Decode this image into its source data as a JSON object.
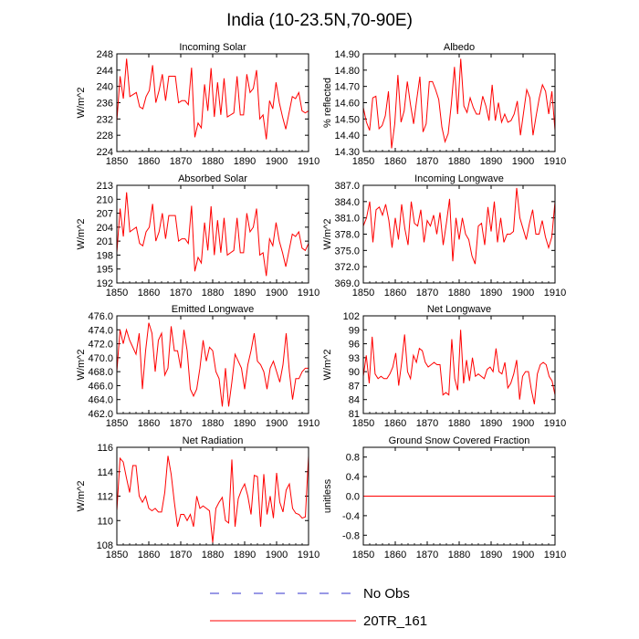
{
  "figure_title": "India (10-23.5N,70-90E)",
  "colors": {
    "model": "#ff0000",
    "obs": "#3333cc",
    "frame": "#000000"
  },
  "legend": [
    {
      "label": "No Obs",
      "style": "dashed",
      "color": "#3333cc"
    },
    {
      "label": "20TR_161",
      "style": "solid",
      "color": "#ff0000"
    }
  ],
  "chart_data": [
    {
      "type": "line",
      "title": "Incoming Solar",
      "ylabel": "W/m^2",
      "xlim": [
        1850,
        1910
      ],
      "ylim": [
        224,
        248
      ],
      "xticks": [
        1850,
        1860,
        1870,
        1880,
        1890,
        1900,
        1910
      ],
      "xtick_labels": [
        "1850",
        "1860",
        "1870",
        "1880",
        "1890",
        "1900",
        "1910"
      ],
      "yticks": [
        224,
        228,
        232,
        236,
        240,
        244,
        248
      ],
      "ytick_labels": [
        "224",
        "228",
        "232",
        "236",
        "240",
        "244",
        "248"
      ],
      "series": [
        {
          "name": "20TR_161",
          "x0": 1850,
          "values": [
            231.5,
            242.5,
            237.0,
            246.8,
            237.5,
            238.0,
            238.5,
            235.0,
            234.5,
            237.5,
            239.0,
            245.2,
            236.0,
            239.0,
            243.0,
            236.5,
            242.5,
            242.5,
            242.5,
            236.0,
            236.5,
            236.5,
            235.5,
            244.6,
            227.5,
            231.0,
            229.8,
            240.5,
            234.0,
            244.5,
            232.5,
            241.0,
            233.0,
            242.0,
            232.5,
            233.0,
            233.5,
            242.5,
            233.0,
            233.0,
            243.0,
            238.5,
            239.5,
            244.0,
            232.0,
            233.0,
            227.0,
            236.5,
            234.5,
            241.0,
            236.0,
            232.5,
            229.5,
            233.5,
            237.5,
            237.0,
            238.5,
            234.0,
            233.5,
            234.0
          ]
        }
      ]
    },
    {
      "type": "line",
      "title": "Albedo",
      "ylabel": "% reflected",
      "xlim": [
        1850,
        1910
      ],
      "ylim": [
        14.3,
        14.9
      ],
      "xticks": [
        1850,
        1860,
        1870,
        1880,
        1890,
        1900,
        1910
      ],
      "xtick_labels": [
        "1850",
        "1860",
        "1870",
        "1880",
        "1890",
        "1900",
        "1910"
      ],
      "yticks": [
        14.3,
        14.4,
        14.5,
        14.6,
        14.7,
        14.8,
        14.9
      ],
      "ytick_labels": [
        "14.30",
        "14.40",
        "14.50",
        "14.60",
        "14.70",
        "14.80",
        "14.90"
      ],
      "series": [
        {
          "name": "20TR_161",
          "x0": 1850,
          "values": [
            14.57,
            14.48,
            14.43,
            14.63,
            14.64,
            14.44,
            14.46,
            14.52,
            14.67,
            14.32,
            14.47,
            14.77,
            14.48,
            14.55,
            14.73,
            14.59,
            14.47,
            14.62,
            14.76,
            14.42,
            14.47,
            14.73,
            14.73,
            14.68,
            14.62,
            14.45,
            14.36,
            14.41,
            14.59,
            14.82,
            14.53,
            14.87,
            14.58,
            14.54,
            14.63,
            14.57,
            14.53,
            14.53,
            14.64,
            14.58,
            14.49,
            14.71,
            14.49,
            14.6,
            14.48,
            14.53,
            14.48,
            14.49,
            14.53,
            14.61,
            14.4,
            14.54,
            14.68,
            14.63,
            14.4,
            14.52,
            14.63,
            14.71,
            14.67,
            14.53,
            14.67,
            14.43
          ]
        }
      ]
    },
    {
      "type": "line",
      "title": "Absorbed Solar",
      "ylabel": "W/m^2",
      "xlim": [
        1850,
        1910
      ],
      "ylim": [
        192,
        213
      ],
      "xticks": [
        1850,
        1860,
        1870,
        1880,
        1890,
        1900,
        1910
      ],
      "xtick_labels": [
        "1850",
        "1860",
        "1870",
        "1880",
        "1890",
        "1900",
        "1910"
      ],
      "yticks": [
        192,
        195,
        198,
        201,
        204,
        207,
        210,
        213
      ],
      "ytick_labels": [
        "192",
        "195",
        "198",
        "201",
        "204",
        "207",
        "210",
        "213"
      ],
      "series": [
        {
          "name": "20TR_161",
          "x0": 1850,
          "values": [
            198.5,
            208.0,
            202.0,
            211.5,
            203.0,
            203.5,
            204.0,
            200.5,
            200.0,
            203.0,
            204.0,
            209.0,
            201.0,
            203.0,
            207.0,
            201.5,
            206.5,
            206.5,
            206.5,
            201.0,
            201.5,
            201.5,
            200.5,
            208.6,
            194.5,
            197.5,
            196.3,
            205.0,
            199.0,
            208.5,
            198.0,
            205.5,
            198.5,
            206.0,
            198.0,
            198.5,
            199.0,
            206.0,
            198.5,
            198.5,
            207.0,
            203.0,
            204.0,
            208.0,
            198.0,
            198.5,
            193.5,
            201.5,
            200.0,
            205.0,
            201.0,
            198.5,
            195.5,
            199.0,
            202.5,
            202.0,
            203.0,
            199.5,
            199.0,
            200.5
          ]
        }
      ]
    },
    {
      "type": "line",
      "title": "Incoming Longwave",
      "ylabel": "W/m^2",
      "xlim": [
        1850,
        1910
      ],
      "ylim": [
        369,
        387
      ],
      "xticks": [
        1850,
        1860,
        1870,
        1880,
        1890,
        1900,
        1910
      ],
      "xtick_labels": [
        "1850",
        "1860",
        "1870",
        "1880",
        "1890",
        "1900",
        "1910"
      ],
      "yticks": [
        369,
        372,
        375,
        378,
        381,
        384,
        387
      ],
      "ytick_labels": [
        "369.0",
        "372.0",
        "375.0",
        "378.0",
        "381.0",
        "384.0",
        "387.0"
      ],
      "series": [
        {
          "name": "20TR_161",
          "x0": 1850,
          "values": [
            379.5,
            381.0,
            384.0,
            376.5,
            382.5,
            383.0,
            381.5,
            383.5,
            380.5,
            375.5,
            381.0,
            377.0,
            383.5,
            379.0,
            376.0,
            384.0,
            380.0,
            379.5,
            382.5,
            376.5,
            380.5,
            379.5,
            381.5,
            378.0,
            382.0,
            376.0,
            380.0,
            384.5,
            373.0,
            381.0,
            377.0,
            381.0,
            378.0,
            377.0,
            374.0,
            372.5,
            379.5,
            380.0,
            376.0,
            383.0,
            378.5,
            384.0,
            376.5,
            381.0,
            376.5,
            378.0,
            378.0,
            378.5,
            386.5,
            381.0,
            379.0,
            377.0,
            380.0,
            382.5,
            378.0,
            378.0,
            380.5,
            377.5,
            375.5,
            377.5,
            384.0
          ]
        }
      ]
    },
    {
      "type": "line",
      "title": "Emitted Longwave",
      "ylabel": "W/m^2",
      "xlim": [
        1850,
        1910
      ],
      "ylim": [
        462,
        476
      ],
      "xticks": [
        1850,
        1860,
        1870,
        1880,
        1890,
        1900,
        1910
      ],
      "xtick_labels": [
        "1850",
        "1860",
        "1870",
        "1880",
        "1890",
        "1900",
        "1910"
      ],
      "yticks": [
        462,
        464,
        466,
        468,
        470,
        472,
        474,
        476
      ],
      "ytick_labels": [
        "462.0",
        "464.0",
        "466.0",
        "468.0",
        "470.0",
        "472.0",
        "474.0",
        "476.0"
      ],
      "series": [
        {
          "name": "20TR_161",
          "x0": 1850,
          "values": [
            468.0,
            474.0,
            472.0,
            474.0,
            472.5,
            471.5,
            470.5,
            473.5,
            465.5,
            471.0,
            475.0,
            473.5,
            468.0,
            472.5,
            473.5,
            467.5,
            468.5,
            474.5,
            471.0,
            471.0,
            468.5,
            474.0,
            471.0,
            465.5,
            464.5,
            465.5,
            468.5,
            472.5,
            469.5,
            471.5,
            471.0,
            468.0,
            467.0,
            463.0,
            468.5,
            463.0,
            466.5,
            470.5,
            469.5,
            468.5,
            465.5,
            469.0,
            471.0,
            473.5,
            469.5,
            469.0,
            468.0,
            465.5,
            468.5,
            469.5,
            468.0,
            466.5,
            469.0,
            473.5,
            468.0,
            464.0,
            467.0,
            467.0,
            468.0,
            468.5,
            468.5
          ]
        }
      ]
    },
    {
      "type": "line",
      "title": "Net Longwave",
      "ylabel": "W/m^2",
      "xlim": [
        1850,
        1910
      ],
      "ylim": [
        81,
        102
      ],
      "xticks": [
        1850,
        1860,
        1870,
        1880,
        1890,
        1900,
        1910
      ],
      "xtick_labels": [
        "1850",
        "1860",
        "1870",
        "1880",
        "1890",
        "1900",
        "1910"
      ],
      "yticks": [
        81,
        84,
        87,
        90,
        93,
        96,
        99,
        102
      ],
      "ytick_labels": [
        "81",
        "84",
        "87",
        "90",
        "93",
        "96",
        "99",
        "102"
      ],
      "series": [
        {
          "name": "20TR_161",
          "x0": 1850,
          "values": [
            89.0,
            93.5,
            87.5,
            97.5,
            89.5,
            88.5,
            89.0,
            88.5,
            88.5,
            89.5,
            91.0,
            94.0,
            87.0,
            92.0,
            98.0,
            90.0,
            88.5,
            93.5,
            92.0,
            95.0,
            94.5,
            92.0,
            91.0,
            91.5,
            92.0,
            91.5,
            91.5,
            85.0,
            85.5,
            85.0,
            97.0,
            88.5,
            86.0,
            99.0,
            87.5,
            92.5,
            88.0,
            93.0,
            89.0,
            89.5,
            89.0,
            88.5,
            90.5,
            91.0,
            90.0,
            95.0,
            90.0,
            89.5,
            92.0,
            86.5,
            87.5,
            89.5,
            92.5,
            84.0,
            89.0,
            90.0,
            90.0,
            86.0,
            83.0,
            89.5,
            91.5,
            92.0,
            91.5,
            89.0,
            88.0,
            85.0
          ]
        }
      ]
    },
    {
      "type": "line",
      "title": "Net Radiation",
      "ylabel": "W/m^2",
      "xlim": [
        1850,
        1910
      ],
      "ylim": [
        108,
        116
      ],
      "xticks": [
        1850,
        1860,
        1870,
        1880,
        1890,
        1900,
        1910
      ],
      "xtick_labels": [
        "1850",
        "1860",
        "1870",
        "1880",
        "1890",
        "1900",
        "1910"
      ],
      "yticks": [
        108,
        110,
        112,
        114,
        116
      ],
      "ytick_labels": [
        "108",
        "110",
        "112",
        "114",
        "116"
      ],
      "series": [
        {
          "name": "20TR_161",
          "x0": 1850,
          "values": [
            110.8,
            115.1,
            114.8,
            113.5,
            112.3,
            114.5,
            114.5,
            112.0,
            111.5,
            112.0,
            111.0,
            110.8,
            111.0,
            110.7,
            110.7,
            112.3,
            115.3,
            113.8,
            111.5,
            109.5,
            110.5,
            110.5,
            110.0,
            110.5,
            109.5,
            112.0,
            111.0,
            111.2,
            111.0,
            110.8,
            108.2,
            111.0,
            111.5,
            111.9,
            110.0,
            109.8,
            115.0,
            109.5,
            111.8,
            112.5,
            113.0,
            112.0,
            110.5,
            113.7,
            113.6,
            109.5,
            113.8,
            110.5,
            112.0,
            110.2,
            113.9,
            111.5,
            110.7,
            112.5,
            113.0,
            111.0,
            110.6,
            110.5,
            110.2,
            110.3,
            115.3
          ]
        }
      ]
    },
    {
      "type": "line",
      "title": "Ground Snow Covered Fraction",
      "ylabel": "unitless",
      "xlim": [
        1850,
        1910
      ],
      "ylim": [
        -1.0,
        1.0
      ],
      "xticks": [
        1850,
        1860,
        1870,
        1880,
        1890,
        1900,
        1910
      ],
      "xtick_labels": [
        "1850",
        "1860",
        "1870",
        "1880",
        "1890",
        "1900",
        "1910"
      ],
      "yticks": [
        -0.8,
        -0.4,
        0.0,
        0.4,
        0.8
      ],
      "ytick_labels": [
        "-0.8",
        "-0.4",
        "0.0",
        "0.4",
        "0.8"
      ],
      "series": [
        {
          "name": "20TR_161",
          "x0": 1850,
          "values": [
            0,
            0,
            0,
            0,
            0,
            0,
            0,
            0,
            0,
            0,
            0,
            0,
            0,
            0,
            0,
            0,
            0,
            0,
            0,
            0,
            0,
            0,
            0,
            0,
            0,
            0,
            0,
            0,
            0,
            0,
            0,
            0,
            0,
            0,
            0,
            0,
            0,
            0,
            0,
            0,
            0,
            0,
            0,
            0,
            0,
            0,
            0,
            0,
            0,
            0,
            0,
            0,
            0,
            0,
            0,
            0,
            0,
            0,
            0,
            0
          ]
        }
      ]
    }
  ]
}
